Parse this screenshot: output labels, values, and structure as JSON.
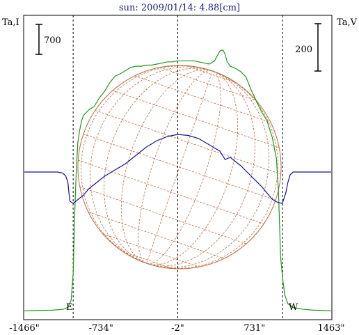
{
  "chart_data": {
    "type": "line",
    "title": "sun: 2009/01/14: 4.88[cm]",
    "left_axis_label": "Ta,I",
    "right_axis_label": "Ta,V",
    "scale_bar_left": "700",
    "scale_bar_right": "200",
    "x_unit": "arcsec",
    "xlim": [
      -1466,
      1463
    ],
    "xtick_labels": [
      "-1466\"",
      "-734\"",
      "-2\"",
      "731\"",
      "1463\""
    ],
    "xtick_values": [
      -1466,
      -734,
      -2,
      731,
      1463
    ],
    "vertical_markers": [
      -1000,
      -2,
      1000
    ],
    "limb_labels": {
      "east": "E",
      "west": "W"
    },
    "ylim_I": [
      0,
      2500
    ],
    "ylim_V": [
      -900,
      420
    ],
    "colors": {
      "I_line": "#1a9a1a",
      "V_line": "#1010a0",
      "grid_lines": "#b86a3a",
      "title": "#1a1a8a",
      "frame": "#000000"
    },
    "series": [
      {
        "id": "I",
        "x": [
          -1466,
          -1200,
          -1100,
          -1050,
          -1020,
          -1000,
          -985,
          -970,
          -955,
          -940,
          -920,
          -900,
          -850,
          -800,
          -750,
          -700,
          -650,
          -600,
          -550,
          -500,
          -450,
          -400,
          -350,
          -300,
          -250,
          -200,
          -150,
          -100,
          -50,
          0,
          50,
          100,
          150,
          200,
          250,
          300,
          350,
          400,
          430,
          450,
          470,
          500,
          550,
          600,
          650,
          700,
          750,
          800,
          850,
          900,
          940,
          960,
          980,
          1000,
          1020,
          1050,
          1100,
          1200,
          1300,
          1463
        ],
        "values": [
          5,
          10,
          18,
          35,
          100,
          350,
          900,
          1300,
          1550,
          1650,
          1750,
          1800,
          1850,
          1880,
          1960,
          2020,
          2100,
          2160,
          2180,
          2210,
          2240,
          2250,
          2250,
          2260,
          2260,
          2270,
          2280,
          2290,
          2290,
          2300,
          2300,
          2300,
          2300,
          2290,
          2280,
          2270,
          2300,
          2390,
          2400,
          2360,
          2290,
          2250,
          2230,
          2200,
          2150,
          2030,
          1930,
          1830,
          1750,
          1600,
          1400,
          1100,
          500,
          300,
          150,
          70,
          35,
          18,
          10,
          5
        ]
      },
      {
        "id": "V",
        "x": [
          -1466,
          -1150,
          -1100,
          -1070,
          -1050,
          -1040,
          -1030,
          -1000,
          -950,
          -900,
          -850,
          -800,
          -700,
          -600,
          -500,
          -400,
          -300,
          -200,
          -100,
          0,
          100,
          200,
          300,
          400,
          450,
          500,
          600,
          700,
          800,
          850,
          900,
          950,
          990,
          1000,
          1030,
          1050,
          1070,
          1100,
          1150,
          1463
        ],
        "values": [
          0,
          0,
          -5,
          -20,
          -50,
          -100,
          -140,
          -150,
          -130,
          -110,
          -80,
          -60,
          -20,
          10,
          40,
          80,
          120,
          150,
          170,
          180,
          175,
          160,
          130,
          100,
          60,
          70,
          30,
          -20,
          -70,
          -100,
          -130,
          -145,
          -150,
          -145,
          -100,
          -50,
          -15,
          0,
          0,
          0
        ]
      }
    ]
  }
}
